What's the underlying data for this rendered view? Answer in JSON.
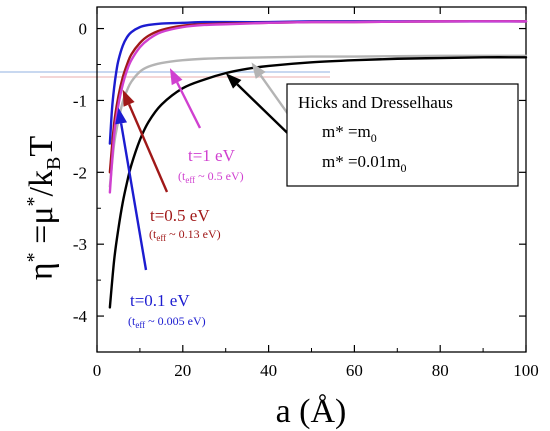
{
  "chart_data": {
    "type": "line",
    "title": "",
    "xlabel": "a (Å)",
    "ylabel": "η* =μ*/kBT",
    "xlim": [
      0,
      100
    ],
    "ylim": [
      -4.5,
      0.3
    ],
    "xticks": [
      0,
      20,
      40,
      60,
      80,
      100
    ],
    "yticks": [
      0,
      -1,
      -2,
      -3,
      -4
    ],
    "series": [
      {
        "name": "m* =m0",
        "color": "#b4b4b4",
        "x": [
          3,
          4,
          5,
          6,
          7,
          8,
          10,
          12,
          15,
          20,
          25,
          30,
          40,
          50,
          60,
          80,
          100
        ],
        "y": [
          -2.2,
          -1.6,
          -1.28,
          -1.02,
          -0.86,
          -0.74,
          -0.6,
          -0.53,
          -0.48,
          -0.44,
          -0.42,
          -0.41,
          -0.4,
          -0.39,
          -0.39,
          -0.38,
          -0.38
        ]
      },
      {
        "name": "m* =0.01m0",
        "color": "#000000",
        "x": [
          3,
          4,
          5,
          6,
          7,
          8,
          10,
          12,
          15,
          20,
          25,
          30,
          35,
          40,
          50,
          60,
          70,
          80,
          90,
          100
        ],
        "y": [
          -3.88,
          -3.22,
          -2.78,
          -2.42,
          -2.14,
          -1.9,
          -1.55,
          -1.3,
          -1.06,
          -0.83,
          -0.71,
          -0.62,
          -0.56,
          -0.52,
          -0.47,
          -0.44,
          -0.42,
          -0.41,
          -0.4,
          -0.4
        ]
      },
      {
        "name": "t=0.1 eV",
        "color": "#1c1cd0",
        "x": [
          3,
          3.5,
          4,
          4.5,
          5,
          6,
          7,
          8,
          10,
          12,
          15,
          20,
          25,
          30,
          40,
          50,
          60,
          80,
          100
        ],
        "y": [
          -1.6,
          -1.12,
          -0.82,
          -0.6,
          -0.44,
          -0.24,
          -0.12,
          -0.05,
          0.02,
          0.05,
          0.07,
          0.08,
          0.09,
          0.09,
          0.09,
          0.1,
          0.1,
          0.1,
          0.1
        ]
      },
      {
        "name": "t=0.5 eV",
        "color": "#a01818",
        "x": [
          3,
          4,
          5,
          6,
          7,
          8,
          10,
          12,
          15,
          20,
          25,
          30,
          40,
          50,
          60,
          80,
          100
        ],
        "y": [
          -2.0,
          -1.32,
          -0.94,
          -0.68,
          -0.5,
          -0.36,
          -0.2,
          -0.1,
          -0.02,
          0.04,
          0.06,
          0.07,
          0.08,
          0.09,
          0.09,
          0.1,
          0.1
        ]
      },
      {
        "name": "t=1 eV",
        "color": "#d040d0",
        "x": [
          3,
          4,
          5,
          6,
          7,
          8,
          10,
          12,
          15,
          20,
          25,
          30,
          40,
          50,
          60,
          80,
          100
        ],
        "y": [
          -2.28,
          -1.48,
          -1.06,
          -0.78,
          -0.58,
          -0.44,
          -0.26,
          -0.15,
          -0.05,
          0.02,
          0.05,
          0.06,
          0.08,
          0.09,
          0.09,
          0.1,
          0.1
        ]
      }
    ],
    "annotations": [
      {
        "text": "t=0.1 eV",
        "sub_pre": "(t",
        "sub_sub": "eff",
        "sub_post": " ~ 0.005 eV)",
        "color": "#1c1cd0"
      },
      {
        "text": "t=0.5 eV",
        "sub_pre": "(t",
        "sub_sub": "eff",
        "sub_post": " ~ 0.13 eV)",
        "color": "#a01818"
      },
      {
        "text": "t=1 eV",
        "sub_pre": "(t",
        "sub_sub": "eff",
        "sub_post": " ~ 0.5 eV)",
        "color": "#d040d0"
      }
    ],
    "legend": {
      "placement": "right",
      "title": "Hicks and Dresselhaus",
      "entries": [
        {
          "base": "m* =m",
          "sub": "0",
          "color": "#b4b4b4"
        },
        {
          "base": "m* =0.01m",
          "sub": "0",
          "color": "#000000"
        }
      ]
    },
    "ylabel_parts": {
      "eta": "η",
      "star1": "*",
      "eq_mu": " =μ",
      "star2": "*",
      "slash_k": "/k",
      "sub_b": "B",
      "t": "T"
    },
    "grid": false
  }
}
